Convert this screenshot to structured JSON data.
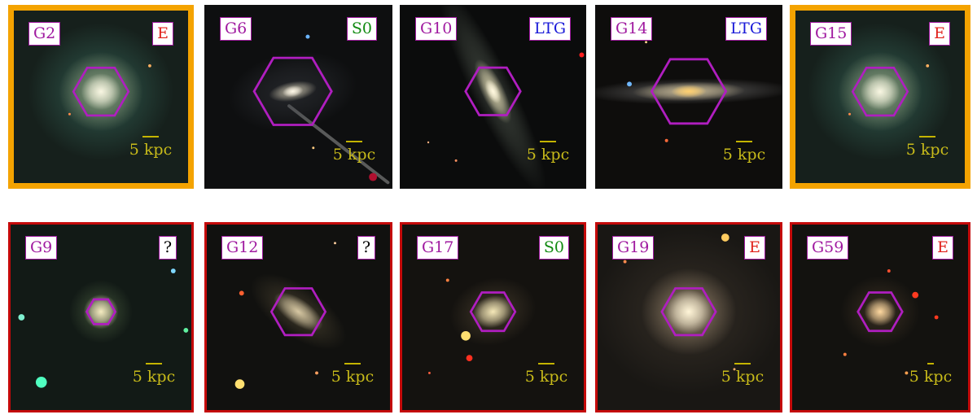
{
  "colors": {
    "label_border": "#a01aa0",
    "id_text": "#a01aa0",
    "hexagon": "#b01ec0",
    "scale": "#c4b400",
    "frame_orange": "#f4a300",
    "frame_red": "#c40a0a",
    "frame_black": "#111111",
    "type_E": "#e0201a",
    "type_S0": "#108a10",
    "type_LTG": "#1a1ad8",
    "type_unknown": "#000000"
  },
  "rows": [
    {
      "panels": [
        {
          "id": "G2",
          "type": "E",
          "scale_text": "5 kpc",
          "frame": "orange",
          "galaxy": "elliptical-large-teal"
        },
        {
          "id": "G6",
          "type": "S0",
          "scale_text": "5 kpc",
          "frame": "black",
          "galaxy": "lenticular-small"
        },
        {
          "id": "G10",
          "type": "LTG",
          "scale_text": "5 kpc",
          "frame": "black",
          "galaxy": "edge-on-tilted"
        },
        {
          "id": "G14",
          "type": "LTG",
          "scale_text": "5 kpc",
          "frame": "black",
          "galaxy": "edge-on-horizontal"
        },
        {
          "id": "G15",
          "type": "E",
          "scale_text": "5 kpc",
          "frame": "orange",
          "galaxy": "elliptical-large-teal"
        }
      ]
    },
    {
      "panels": [
        {
          "id": "G9",
          "type": "?",
          "scale_text": "5 kpc",
          "frame": "red",
          "galaxy": "compact-round"
        },
        {
          "id": "G12",
          "type": "?",
          "scale_text": "5 kpc",
          "frame": "red-orange",
          "galaxy": "elongated-diagonal"
        },
        {
          "id": "G17",
          "type": "S0",
          "scale_text": "5 kpc",
          "frame": "red-orange",
          "galaxy": "lenticular-round"
        },
        {
          "id": "G19",
          "type": "E",
          "scale_text": "5 kpc",
          "frame": "red-orange",
          "galaxy": "elliptical-large-warm"
        },
        {
          "id": "G59",
          "type": "E",
          "scale_text": "5 kpc",
          "frame": "red-orange",
          "galaxy": "elliptical-compact"
        }
      ]
    }
  ]
}
